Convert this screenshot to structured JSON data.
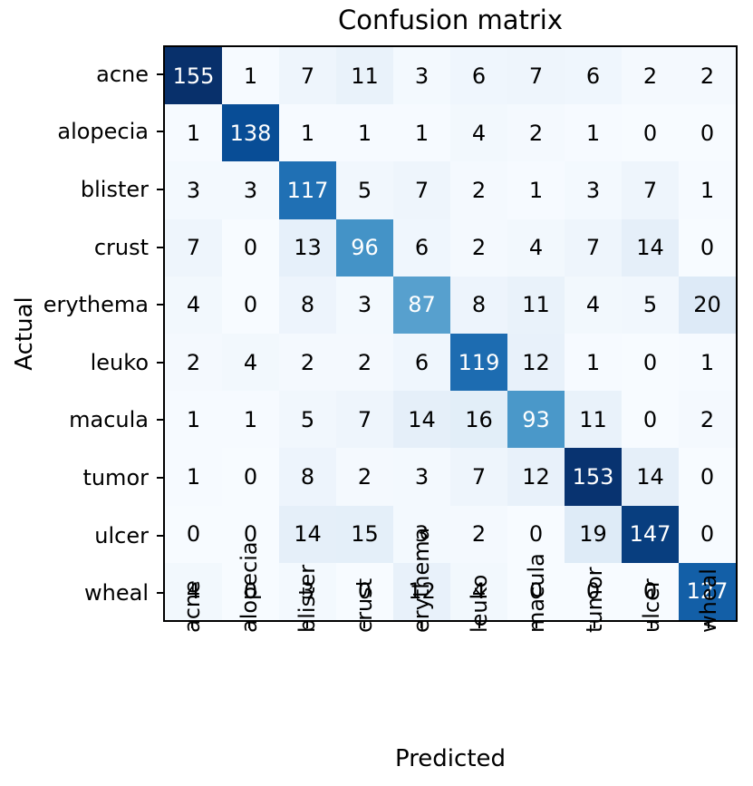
{
  "chart_data": {
    "type": "heatmap",
    "title": "Confusion matrix",
    "xlabel": "Predicted",
    "ylabel": "Actual",
    "x_tick_labels": [
      "acne",
      "alopecia",
      "blister",
      "crust",
      "erythema",
      "leuko",
      "macula",
      "tumor",
      "ulcer",
      "wheal"
    ],
    "y_tick_labels": [
      "acne",
      "alopecia",
      "blister",
      "crust",
      "erythema",
      "leuko",
      "macula",
      "tumor",
      "ulcer",
      "wheal"
    ],
    "matrix": [
      [
        155,
        1,
        7,
        11,
        3,
        6,
        7,
        6,
        2,
        2
      ],
      [
        1,
        138,
        1,
        1,
        1,
        4,
        2,
        1,
        0,
        0
      ],
      [
        3,
        3,
        117,
        5,
        7,
        2,
        1,
        3,
        7,
        1
      ],
      [
        7,
        0,
        13,
        96,
        6,
        2,
        4,
        7,
        14,
        0
      ],
      [
        4,
        0,
        8,
        3,
        87,
        8,
        11,
        4,
        5,
        20
      ],
      [
        2,
        4,
        2,
        2,
        6,
        119,
        12,
        1,
        0,
        1
      ],
      [
        1,
        1,
        5,
        7,
        14,
        16,
        93,
        11,
        0,
        2
      ],
      [
        1,
        0,
        8,
        2,
        3,
        7,
        12,
        153,
        14,
        0
      ],
      [
        0,
        0,
        14,
        15,
        3,
        2,
        0,
        19,
        147,
        0
      ],
      [
        4,
        0,
        3,
        0,
        12,
        4,
        0,
        0,
        0,
        127
      ]
    ],
    "vmin": 0,
    "vmax": 155,
    "colormap": "Blues",
    "colormap_stops": [
      [
        0.0,
        "#f7fbff"
      ],
      [
        0.125,
        "#deebf7"
      ],
      [
        0.25,
        "#c6dbef"
      ],
      [
        0.375,
        "#9ecae1"
      ],
      [
        0.5,
        "#6baed6"
      ],
      [
        0.625,
        "#4292c6"
      ],
      [
        0.75,
        "#2171b5"
      ],
      [
        0.875,
        "#08519c"
      ],
      [
        1.0,
        "#08306b"
      ]
    ],
    "cell_text_colors": {
      "high": "#ffffff",
      "low": "#000000"
    },
    "spine_color": "#000000",
    "legend": "none",
    "grid": false
  }
}
